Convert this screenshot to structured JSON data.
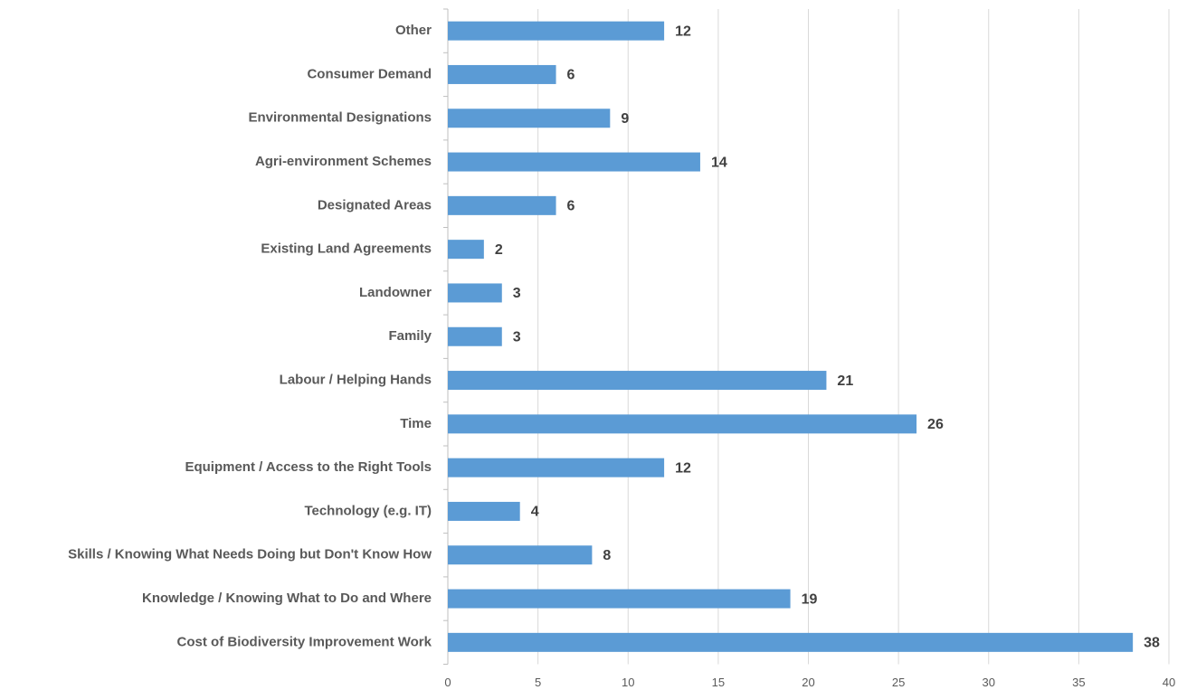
{
  "chart_data": {
    "type": "bar",
    "orientation": "horizontal",
    "categories": [
      "Other",
      "Consumer Demand",
      "Environmental Designations",
      "Agri-environment Schemes",
      "Designated Areas",
      "Existing Land Agreements",
      "Landowner",
      "Family",
      "Labour / Helping Hands",
      "Time",
      "Equipment / Access to the Right Tools",
      "Technology (e.g. IT)",
      "Skills / Knowing What Needs Doing but Don't Know How",
      "Knowledge / Knowing What to Do and Where",
      "Cost of Biodiversity Improvement Work"
    ],
    "values": [
      12,
      6,
      9,
      14,
      6,
      2,
      3,
      3,
      21,
      26,
      12,
      4,
      8,
      19,
      38
    ],
    "color": "#5b9bd5",
    "xlim": [
      0,
      40
    ],
    "xticks": [
      0,
      5,
      10,
      15,
      20,
      25,
      30,
      35,
      40
    ],
    "grid": true
  }
}
